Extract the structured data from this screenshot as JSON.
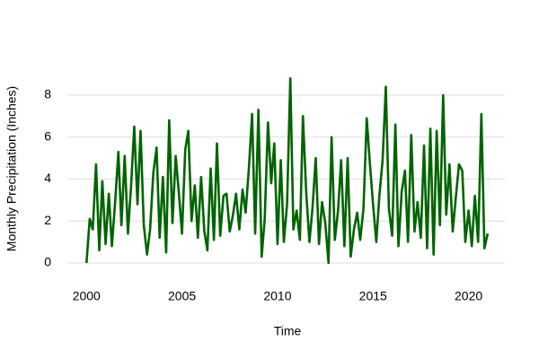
{
  "chart_data": {
    "type": "line",
    "x_label": "Time",
    "y_label": "Monthly Precipitation (Inches)",
    "x": [
      2000,
      2000.17,
      2000.33,
      2000.5,
      2000.67,
      2000.83,
      2001,
      2001.17,
      2001.33,
      2001.5,
      2001.67,
      2001.83,
      2002,
      2002.17,
      2002.33,
      2002.5,
      2002.67,
      2002.83,
      2003,
      2003.17,
      2003.33,
      2003.5,
      2003.67,
      2003.83,
      2004,
      2004.17,
      2004.33,
      2004.5,
      2004.67,
      2004.83,
      2005,
      2005.17,
      2005.33,
      2005.5,
      2005.67,
      2005.83,
      2006,
      2006.17,
      2006.33,
      2006.5,
      2006.67,
      2006.83,
      2007,
      2007.17,
      2007.33,
      2007.5,
      2007.67,
      2007.83,
      2008,
      2008.17,
      2008.33,
      2008.5,
      2008.67,
      2008.83,
      2009,
      2009.17,
      2009.33,
      2009.5,
      2009.67,
      2009.83,
      2010,
      2010.17,
      2010.33,
      2010.5,
      2010.67,
      2010.83,
      2011,
      2011.17,
      2011.33,
      2011.5,
      2011.67,
      2011.83,
      2012,
      2012.17,
      2012.33,
      2012.5,
      2012.67,
      2012.83,
      2013,
      2013.17,
      2013.33,
      2013.5,
      2013.67,
      2013.83,
      2014,
      2014.17,
      2014.33,
      2014.5,
      2014.67,
      2014.83,
      2015,
      2015.17,
      2015.33,
      2015.5,
      2015.67,
      2015.83,
      2016,
      2016.17,
      2016.33,
      2016.5,
      2016.67,
      2016.83,
      2017,
      2017.17,
      2017.33,
      2017.5,
      2017.67,
      2017.83,
      2018,
      2018.17,
      2018.33,
      2018.5,
      2018.67,
      2018.83,
      2019,
      2019.17,
      2019.33,
      2019.5,
      2019.67,
      2019.83,
      2020,
      2020.17,
      2020.33,
      2020.5,
      2020.67,
      2020.83,
      2021
    ],
    "series": [
      {
        "color": "#006400",
        "values": [
          0.0,
          2.1,
          1.6,
          4.7,
          0.6,
          3.9,
          0.9,
          3.3,
          0.8,
          2.9,
          5.3,
          1.8,
          5.1,
          1.4,
          3.6,
          6.5,
          2.8,
          6.3,
          1.8,
          0.4,
          1.6,
          4.3,
          5.5,
          1.2,
          4.1,
          0.5,
          6.8,
          1.9,
          5.1,
          3.4,
          1.4,
          5.4,
          6.3,
          2.0,
          3.7,
          1.2,
          4.1,
          1.5,
          0.6,
          4.5,
          1.1,
          5.7,
          1.3,
          3.2,
          3.3,
          1.5,
          2.3,
          3.3,
          1.6,
          3.5,
          2.4,
          4.5,
          7.1,
          1.4,
          7.3,
          0.3,
          2.1,
          6.7,
          3.8,
          5.7,
          0.9,
          4.9,
          1.0,
          2.8,
          8.8,
          1.6,
          2.5,
          1.1,
          7.0,
          3.4,
          1.0,
          2.6,
          5.0,
          0.9,
          2.9,
          1.9,
          0.0,
          6.0,
          1.1,
          2.5,
          4.9,
          0.8,
          5.0,
          0.3,
          1.6,
          2.4,
          1.1,
          2.6,
          6.9,
          4.8,
          2.8,
          1.0,
          3.2,
          4.9,
          8.4,
          2.6,
          1.3,
          6.6,
          0.8,
          3.4,
          4.4,
          1.0,
          6.1,
          1.5,
          2.9,
          1.2,
          5.6,
          0.7,
          6.4,
          0.4,
          6.3,
          1.8,
          8.0,
          2.3,
          4.7,
          1.5,
          3.1,
          4.7,
          4.4,
          1.0,
          2.5,
          0.8,
          3.2,
          1.0,
          7.1,
          0.7,
          1.4
        ]
      }
    ],
    "xlim": [
      1999,
      2021.9
    ],
    "ylim": [
      -1.07,
      8.9
    ],
    "xticks": [
      2000,
      2005,
      2010,
      2015,
      2020
    ],
    "yticks": [
      0,
      2,
      4,
      6,
      8
    ],
    "grid": true
  }
}
